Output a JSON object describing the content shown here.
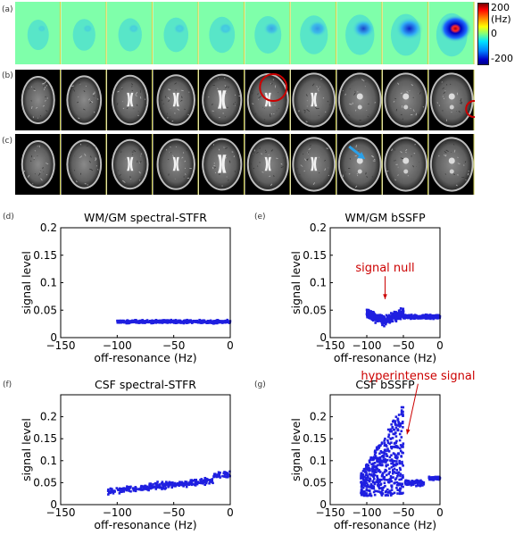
{
  "panel_labels": {
    "a": "(a)",
    "b": "(b)",
    "c": "(c)",
    "d": "(d)",
    "e": "(e)",
    "f": "(f)",
    "g": "(g)"
  },
  "colorbar": {
    "top": "200 (Hz)",
    "mid": "0",
    "bottom": "-200"
  },
  "images": {
    "a_tiles": 10,
    "b_tiles": 10,
    "c_tiles": 10,
    "a_hotspot_levels": [
      0.0,
      0.05,
      0.1,
      0.15,
      0.22,
      0.3,
      0.45,
      0.6,
      0.8,
      1.0
    ],
    "b_circle_tiles": [
      5,
      9
    ],
    "c_arrow_tile": 7
  },
  "colors": {
    "marker": "#1f1fe0",
    "annotation": "#cc0000",
    "arrow_c": "#2aa0e8"
  },
  "chart_data": [
    {
      "id": "d",
      "type": "scatter",
      "title": "WM/GM spectral-STFR",
      "xlabel": "off-resonance (Hz)",
      "ylabel": "signal level",
      "xlim": [
        -150,
        0
      ],
      "ylim": [
        0,
        0.2
      ],
      "xticks": [
        "−150",
        "−100",
        "−50",
        "0"
      ],
      "yticks": [
        "0",
        "0.05",
        "0.1",
        "0.15",
        "0.2"
      ],
      "series": [
        {
          "x_range": [
            -100,
            0
          ],
          "y_range": [
            0.022,
            0.036
          ],
          "pattern": "flat"
        }
      ],
      "annotations": []
    },
    {
      "id": "e",
      "type": "scatter",
      "title": "WM/GM bSSFP",
      "xlabel": "off-resonance (Hz)",
      "ylabel": "signal level",
      "xlim": [
        -150,
        0
      ],
      "ylim": [
        0,
        0.2
      ],
      "xticks": [
        "−150",
        "−100",
        "−50",
        "0"
      ],
      "yticks": [
        "0",
        "0.05",
        "0.1",
        "0.15",
        "0.2"
      ],
      "series": [
        {
          "x_range": [
            -100,
            0
          ],
          "y_range": [
            0.015,
            0.055
          ],
          "pattern": "null",
          "null_x": -75
        }
      ],
      "annotations": [
        {
          "text": "signal null",
          "x": -75,
          "y": 0.12,
          "tx": -75,
          "ty": 0.07
        }
      ]
    },
    {
      "id": "f",
      "type": "scatter",
      "title": "CSF spectral-STFR",
      "xlabel": "off-resonance (Hz)",
      "ylabel": "signal level",
      "xlim": [
        -150,
        0
      ],
      "ylim": [
        0,
        0.25
      ],
      "xticks": [
        "−150",
        "−100",
        "−50",
        "0"
      ],
      "yticks": [
        "0",
        "0.05",
        "0.1",
        "0.15",
        "0.2"
      ],
      "series": [
        {
          "x_range": [
            -108,
            0
          ],
          "y_range": [
            0.025,
            0.085
          ],
          "pattern": "rising"
        }
      ],
      "annotations": []
    },
    {
      "id": "g",
      "type": "scatter",
      "title": "CSF bSSFP",
      "xlabel": "off-resonance (Hz)",
      "ylabel": "signal level",
      "xlim": [
        -150,
        0
      ],
      "ylim": [
        0,
        0.25
      ],
      "xticks": [
        "−150",
        "−100",
        "−50",
        "0"
      ],
      "yticks": [
        "0",
        "0.05",
        "0.1",
        "0.15",
        "0.2"
      ],
      "series": [
        {
          "x_range": [
            -108,
            0
          ],
          "y_range": [
            0.0,
            0.21
          ],
          "pattern": "burst"
        }
      ],
      "annotations": [
        {
          "text": "hyperintense signal",
          "x": -30,
          "y": 0.285,
          "tx": -45,
          "ty": 0.16
        }
      ]
    }
  ]
}
